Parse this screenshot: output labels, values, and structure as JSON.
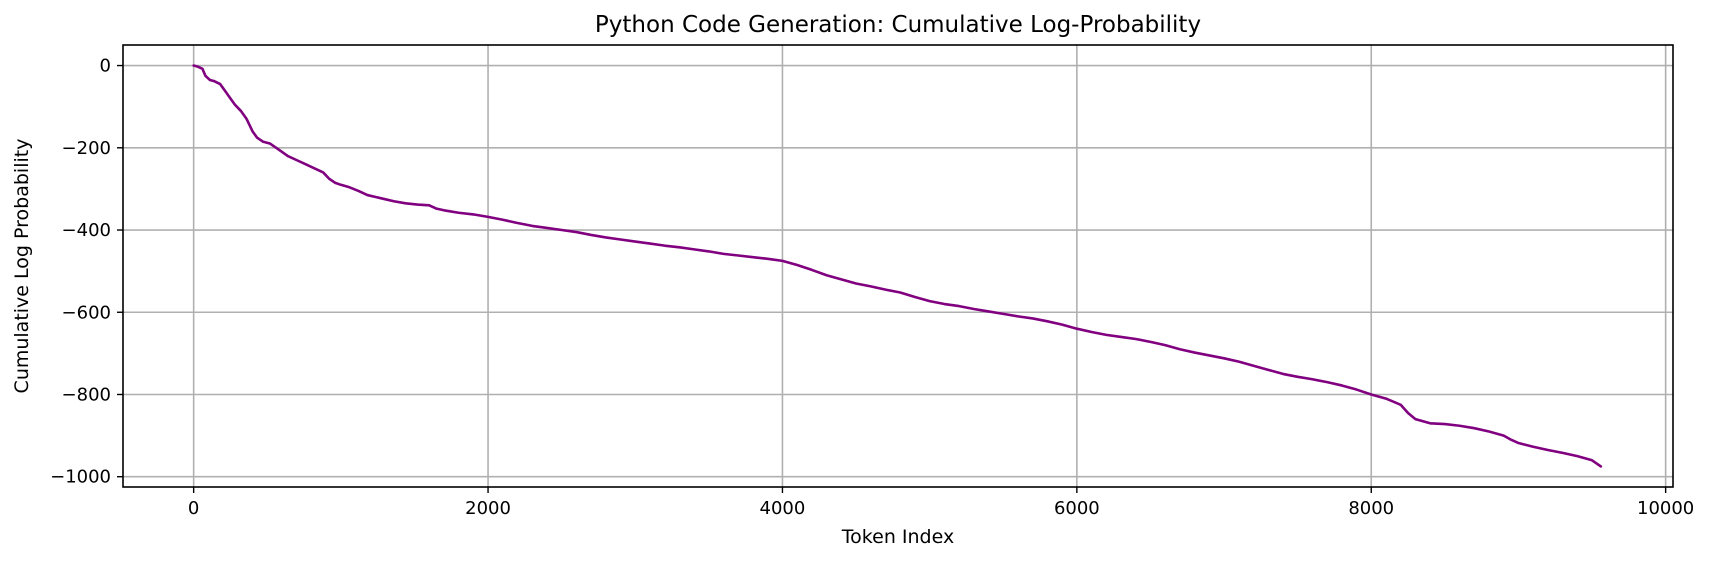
{
  "chart_data": {
    "type": "line",
    "title": "Python Code Generation: Cumulative Log-Probability",
    "xlabel": "Token Index",
    "ylabel": "Cumulative Log Probability",
    "xlim": [
      -480,
      10050
    ],
    "ylim": [
      -1025,
      50
    ],
    "xticks": [
      0,
      2000,
      4000,
      6000,
      8000,
      10000
    ],
    "xtick_labels": [
      "0",
      "2000",
      "4000",
      "6000",
      "8000",
      "10000"
    ],
    "yticks": [
      0,
      -200,
      -400,
      -600,
      -800,
      -1000
    ],
    "ytick_labels": [
      "0",
      "−200",
      "−400",
      "−600",
      "−800",
      "−1000"
    ],
    "grid": true,
    "legend": "none",
    "series": [
      {
        "color": "#800080",
        "x": [
          0,
          30,
          60,
          80,
          110,
          140,
          180,
          220,
          250,
          280,
          320,
          360,
          400,
          430,
          470,
          520,
          580,
          640,
          700,
          760,
          820,
          880,
          920,
          960,
          1000,
          1050,
          1120,
          1180,
          1240,
          1300,
          1360,
          1440,
          1520,
          1600,
          1650,
          1700,
          1800,
          1900,
          2000,
          2100,
          2200,
          2300,
          2400,
          2500,
          2600,
          2700,
          2800,
          2900,
          3000,
          3100,
          3200,
          3300,
          3400,
          3500,
          3600,
          3700,
          3800,
          3900,
          4000,
          4100,
          4200,
          4300,
          4400,
          4500,
          4600,
          4700,
          4800,
          4900,
          5000,
          5100,
          5200,
          5300,
          5400,
          5500,
          5600,
          5700,
          5800,
          5900,
          6000,
          6100,
          6200,
          6300,
          6400,
          6500,
          6600,
          6700,
          6800,
          6900,
          7000,
          7100,
          7200,
          7300,
          7400,
          7500,
          7600,
          7700,
          7800,
          7900,
          8000,
          8100,
          8200,
          8250,
          8300,
          8400,
          8500,
          8600,
          8700,
          8800,
          8900,
          8950,
          9000,
          9100,
          9200,
          9300,
          9400,
          9500,
          9560
        ],
        "y": [
          0,
          -3,
          -8,
          -25,
          -35,
          -38,
          -45,
          -65,
          -80,
          -95,
          -110,
          -130,
          -160,
          -175,
          -185,
          -190,
          -205,
          -220,
          -230,
          -240,
          -250,
          -260,
          -275,
          -285,
          -290,
          -295,
          -305,
          -315,
          -320,
          -325,
          -330,
          -335,
          -338,
          -340,
          -348,
          -352,
          -358,
          -362,
          -368,
          -375,
          -383,
          -390,
          -395,
          -400,
          -405,
          -412,
          -418,
          -423,
          -428,
          -433,
          -438,
          -442,
          -447,
          -452,
          -458,
          -462,
          -466,
          -470,
          -475,
          -485,
          -497,
          -510,
          -520,
          -530,
          -537,
          -545,
          -552,
          -563,
          -573,
          -580,
          -585,
          -592,
          -598,
          -604,
          -610,
          -615,
          -622,
          -630,
          -640,
          -648,
          -655,
          -660,
          -665,
          -672,
          -680,
          -690,
          -698,
          -705,
          -712,
          -720,
          -730,
          -740,
          -750,
          -757,
          -763,
          -770,
          -778,
          -788,
          -800,
          -810,
          -825,
          -845,
          -860,
          -870,
          -872,
          -876,
          -882,
          -890,
          -900,
          -910,
          -918,
          -927,
          -935,
          -942,
          -950,
          -960,
          -975
        ]
      }
    ]
  }
}
